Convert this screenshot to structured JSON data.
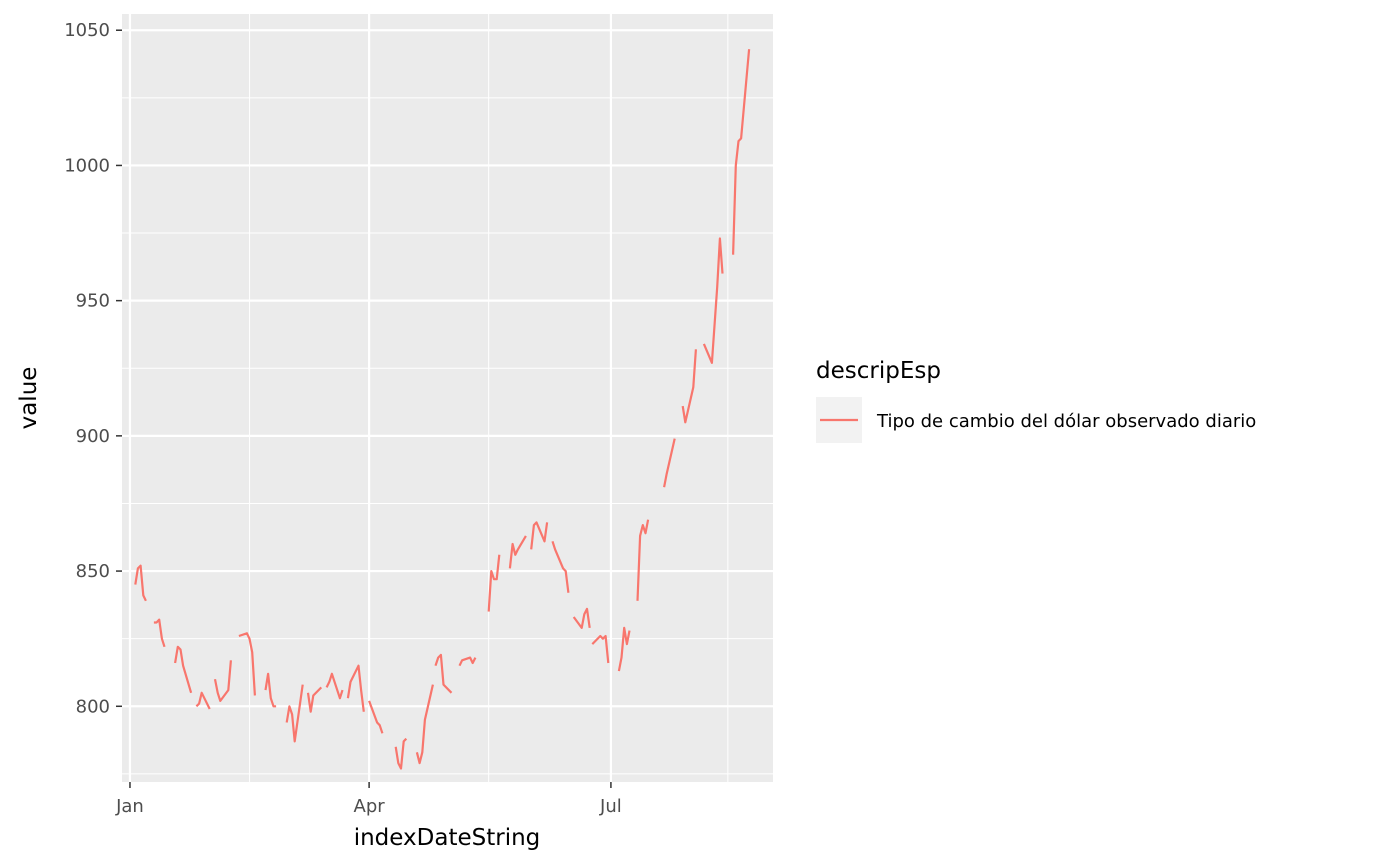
{
  "chart_data": {
    "type": "line",
    "xlabel": "indexDateString",
    "ylabel": "value",
    "x_tick_labels": [
      "Jan",
      "Apr",
      "Jul"
    ],
    "y_tick_labels": [
      "800",
      "850",
      "900",
      "950",
      "1000",
      "1050"
    ],
    "x_ticks": [
      "2022-01-01",
      "2022-04-01",
      "2022-07-01"
    ],
    "y_ticks": [
      800,
      850,
      900,
      950,
      1000,
      1050
    ],
    "xlim": [
      "2021-12-29",
      "2022-08-31"
    ],
    "ylim": [
      772,
      1056
    ],
    "grid": true,
    "panel_background": "#ebebeb",
    "legend": {
      "title": "descripEsp",
      "position": "right"
    },
    "series": [
      {
        "name": "Tipo de cambio del dólar observado diario",
        "color": "#f8766d",
        "segments": [
          [
            [
              "2022-01-03",
              845
            ],
            [
              "2022-01-04",
              851
            ],
            [
              "2022-01-05",
              852
            ],
            [
              "2022-01-06",
              841
            ],
            [
              "2022-01-07",
              839
            ]
          ],
          [
            [
              "2022-01-10",
              831
            ],
            [
              "2022-01-11",
              831
            ],
            [
              "2022-01-12",
              832
            ],
            [
              "2022-01-13",
              825
            ],
            [
              "2022-01-14",
              822
            ]
          ],
          [
            [
              "2022-01-18",
              816
            ],
            [
              "2022-01-19",
              822
            ],
            [
              "2022-01-20",
              821
            ],
            [
              "2022-01-21",
              815
            ],
            [
              "2022-01-24",
              805
            ]
          ],
          [
            [
              "2022-01-26",
              800
            ],
            [
              "2022-01-27",
              801
            ],
            [
              "2022-01-28",
              805
            ],
            [
              "2022-01-31",
              799
            ]
          ],
          [
            [
              "2022-02-02",
              810
            ],
            [
              "2022-02-03",
              805
            ],
            [
              "2022-02-04",
              802
            ],
            [
              "2022-02-07",
              806
            ],
            [
              "2022-02-08",
              817
            ]
          ],
          [
            [
              "2022-02-11",
              826
            ],
            [
              "2022-02-14",
              827
            ],
            [
              "2022-02-15",
              825
            ],
            [
              "2022-02-16",
              820
            ],
            [
              "2022-02-17",
              804
            ]
          ],
          [
            [
              "2022-02-21",
              806
            ],
            [
              "2022-02-22",
              812
            ],
            [
              "2022-02-23",
              803
            ],
            [
              "2022-02-24",
              800
            ],
            [
              "2022-02-25",
              800
            ]
          ],
          [
            [
              "2022-03-01",
              794
            ],
            [
              "2022-03-02",
              800
            ],
            [
              "2022-03-03",
              797
            ],
            [
              "2022-03-04",
              787
            ],
            [
              "2022-03-07",
              808
            ]
          ],
          [
            [
              "2022-03-09",
              805
            ],
            [
              "2022-03-10",
              798
            ],
            [
              "2022-03-11",
              804
            ],
            [
              "2022-03-14",
              807
            ]
          ],
          [
            [
              "2022-03-16",
              807
            ],
            [
              "2022-03-17",
              809
            ],
            [
              "2022-03-18",
              812
            ],
            [
              "2022-03-21",
              803
            ],
            [
              "2022-03-22",
              806
            ]
          ],
          [
            [
              "2022-03-24",
              803
            ],
            [
              "2022-03-25",
              809
            ],
            [
              "2022-03-28",
              815
            ],
            [
              "2022-03-29",
              806
            ],
            [
              "2022-03-30",
              798
            ]
          ],
          [
            [
              "2022-04-01",
              802
            ],
            [
              "2022-04-04",
              794
            ],
            [
              "2022-04-05",
              793
            ],
            [
              "2022-04-06",
              790
            ]
          ],
          [
            [
              "2022-04-11",
              785
            ],
            [
              "2022-04-12",
              779
            ],
            [
              "2022-04-13",
              777
            ],
            [
              "2022-04-14",
              787
            ],
            [
              "2022-04-15",
              788
            ]
          ],
          [
            [
              "2022-04-19",
              783
            ],
            [
              "2022-04-20",
              779
            ],
            [
              "2022-04-21",
              783
            ],
            [
              "2022-04-22",
              795
            ],
            [
              "2022-04-25",
              808
            ]
          ],
          [
            [
              "2022-04-26",
              815
            ],
            [
              "2022-04-27",
              818
            ],
            [
              "2022-04-28",
              819
            ],
            [
              "2022-04-29",
              808
            ],
            [
              "2022-05-02",
              805
            ]
          ],
          [
            [
              "2022-05-05",
              815
            ],
            [
              "2022-05-06",
              817
            ],
            [
              "2022-05-09",
              818
            ],
            [
              "2022-05-10",
              816
            ],
            [
              "2022-05-11",
              818
            ]
          ],
          [
            [
              "2022-05-16",
              835
            ],
            [
              "2022-05-17",
              850
            ],
            [
              "2022-05-18",
              847
            ],
            [
              "2022-05-19",
              847
            ],
            [
              "2022-05-20",
              856
            ]
          ],
          [
            [
              "2022-05-24",
              851
            ],
            [
              "2022-05-25",
              860
            ],
            [
              "2022-05-26",
              856
            ],
            [
              "2022-05-27",
              858
            ],
            [
              "2022-05-30",
              863
            ]
          ],
          [
            [
              "2022-06-01",
              858
            ],
            [
              "2022-06-02",
              867
            ],
            [
              "2022-06-03",
              868
            ],
            [
              "2022-06-06",
              861
            ],
            [
              "2022-06-07",
              868
            ]
          ],
          [
            [
              "2022-06-09",
              861
            ],
            [
              "2022-06-10",
              858
            ],
            [
              "2022-06-13",
              851
            ],
            [
              "2022-06-14",
              850
            ],
            [
              "2022-06-15",
              842
            ]
          ],
          [
            [
              "2022-06-17",
              833
            ],
            [
              "2022-06-20",
              829
            ],
            [
              "2022-06-21",
              834
            ],
            [
              "2022-06-22",
              836
            ],
            [
              "2022-06-23",
              829
            ]
          ],
          [
            [
              "2022-06-24",
              823
            ],
            [
              "2022-06-27",
              826
            ],
            [
              "2022-06-28",
              825
            ],
            [
              "2022-06-29",
              826
            ],
            [
              "2022-06-30",
              816
            ]
          ],
          [
            [
              "2022-07-04",
              813
            ],
            [
              "2022-07-05",
              818
            ],
            [
              "2022-07-06",
              829
            ],
            [
              "2022-07-07",
              823
            ],
            [
              "2022-07-08",
              828
            ]
          ],
          [
            [
              "2022-07-11",
              839
            ],
            [
              "2022-07-12",
              863
            ],
            [
              "2022-07-13",
              867
            ],
            [
              "2022-07-14",
              864
            ],
            [
              "2022-07-15",
              869
            ]
          ],
          [
            [
              "2022-07-21",
              881
            ],
            [
              "2022-07-22",
              886
            ],
            [
              "2022-07-25",
              899
            ]
          ],
          [
            [
              "2022-07-28",
              911
            ],
            [
              "2022-07-29",
              905
            ],
            [
              "2022-08-01",
              918
            ],
            [
              "2022-08-02",
              932
            ]
          ],
          [
            [
              "2022-08-05",
              934
            ],
            [
              "2022-08-08",
              927
            ],
            [
              "2022-08-10",
              955
            ],
            [
              "2022-08-11",
              973
            ],
            [
              "2022-08-12",
              960
            ]
          ],
          [
            [
              "2022-08-16",
              967
            ],
            [
              "2022-08-17",
              1000
            ],
            [
              "2022-08-18",
              1009
            ],
            [
              "2022-08-19",
              1010
            ],
            [
              "2022-08-22",
              1043
            ]
          ]
        ]
      }
    ]
  }
}
